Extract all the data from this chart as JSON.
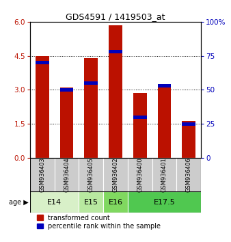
{
  "title": "GDS4591 / 1419503_at",
  "samples": [
    "GSM936403",
    "GSM936404",
    "GSM936405",
    "GSM936402",
    "GSM936400",
    "GSM936401",
    "GSM936406"
  ],
  "transformed_counts": [
    4.5,
    3.1,
    4.4,
    5.85,
    2.85,
    3.25,
    1.62
  ],
  "percentile_ranks_pct": [
    70,
    50,
    55,
    78,
    30,
    53,
    25
  ],
  "age_groups": [
    {
      "label": "E14",
      "start": 0,
      "end": 2,
      "color": "#d8f0c8"
    },
    {
      "label": "E15",
      "start": 2,
      "end": 3,
      "color": "#b8e8a0"
    },
    {
      "label": "E16",
      "start": 3,
      "end": 4,
      "color": "#80d860"
    },
    {
      "label": "E17.5",
      "start": 4,
      "end": 7,
      "color": "#50c850"
    }
  ],
  "ylim_left": [
    0,
    6
  ],
  "ylim_right": [
    0,
    100
  ],
  "yticks_left": [
    0,
    1.5,
    3,
    4.5,
    6
  ],
  "yticks_right": [
    0,
    25,
    50,
    75,
    100
  ],
  "bar_color_red": "#bb1100",
  "bar_color_blue": "#0000bb",
  "bar_width": 0.55,
  "background_color": "#ffffff",
  "label_transformed": "transformed count",
  "label_percentile": "percentile rank within the sample",
  "gray_box_color": "#cccccc",
  "age_label_fontsize": 8,
  "tick_fontsize": 7.5,
  "sample_fontsize": 6
}
